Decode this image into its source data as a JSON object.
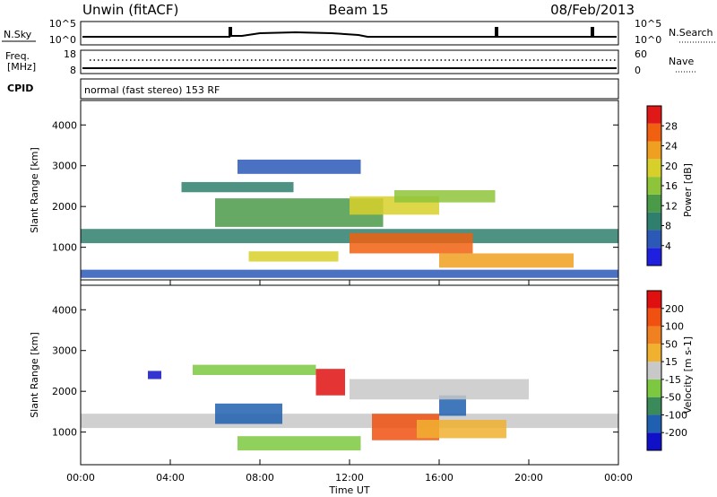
{
  "header": {
    "station": "Unwin (fitACF)",
    "beam": "Beam 15",
    "date": "08/Feb/2013"
  },
  "noise_panel": {
    "left_label": "N.Sky",
    "right_label": "N.Search",
    "left_ticks": [
      "10^5",
      "10^0"
    ],
    "right_ticks": [
      "10^5",
      "10^0"
    ]
  },
  "freq_panel": {
    "left_label_line1": "Freq.",
    "left_label_line2": "[MHz]",
    "right_label": "Nave",
    "left_ticks": [
      "18",
      "8"
    ],
    "right_ticks": [
      "60",
      "0"
    ]
  },
  "cpid_panel": {
    "label": "CPID",
    "mode": "normal (fast stereo) 153 RF"
  },
  "x_axis": {
    "label": "Time UT",
    "ticks": [
      "00:00",
      "04:00",
      "08:00",
      "12:00",
      "16:00",
      "20:00",
      "00:00"
    ],
    "range_hours": [
      0,
      24
    ]
  },
  "chart_data": [
    {
      "type": "heatmap",
      "parameter": "Power",
      "ylabel": "Slant Range [km]",
      "ylim": [
        200,
        4600
      ],
      "yticks": [
        "1000",
        "2000",
        "3000",
        "4000"
      ],
      "colorbar_label": "Power [dB]",
      "colorbar_ticks": [
        "4",
        "8",
        "12",
        "16",
        "20",
        "24",
        "28"
      ],
      "colorbar_range": [
        0,
        32
      ],
      "colors": [
        "#1f1fe0",
        "#2c58b8",
        "#2f7f6e",
        "#4a9a4a",
        "#8ec43a",
        "#d8d02a",
        "#f0a020",
        "#f06010",
        "#e01818"
      ],
      "regions": [
        {
          "t0": 0.0,
          "t1": 24.0,
          "r0": 1100,
          "r1": 1450,
          "level": 10
        },
        {
          "t0": 4.5,
          "t1": 9.5,
          "r0": 2350,
          "r1": 2600,
          "level": 8
        },
        {
          "t0": 6.0,
          "t1": 13.5,
          "r0": 1500,
          "r1": 2200,
          "level": 14
        },
        {
          "t0": 7.5,
          "t1": 11.5,
          "r0": 650,
          "r1": 900,
          "level": 18
        },
        {
          "t0": 12.0,
          "t1": 16.0,
          "r0": 1800,
          "r1": 2250,
          "level": 20
        },
        {
          "t0": 12.0,
          "t1": 17.5,
          "r0": 850,
          "r1": 1350,
          "level": 26
        },
        {
          "t0": 16.0,
          "t1": 22.0,
          "r0": 500,
          "r1": 850,
          "level": 22
        },
        {
          "t0": 14.0,
          "t1": 18.5,
          "r0": 2100,
          "r1": 2400,
          "level": 16
        },
        {
          "t0": 7.0,
          "t1": 12.5,
          "r0": 2800,
          "r1": 3150,
          "level": 6
        },
        {
          "t0": 0.0,
          "t1": 24.0,
          "r0": 250,
          "r1": 450,
          "level": 6
        }
      ]
    },
    {
      "type": "heatmap",
      "parameter": "Velocity",
      "ylabel": "Slant Range [km]",
      "ylim": [
        200,
        4600
      ],
      "yticks": [
        "1000",
        "2000",
        "3000",
        "4000"
      ],
      "colorbar_label": "Velocity [m s-1]",
      "colorbar_ticks": [
        "200",
        "100",
        "50",
        "15",
        "-15",
        "-50",
        "-100",
        "-200"
      ],
      "colorbar_range": [
        -250,
        250
      ],
      "colors": [
        "#1010c8",
        "#2060b0",
        "#3a8a5a",
        "#7cc840",
        "#c8c8c8",
        "#f0b030",
        "#f08020",
        "#f05010",
        "#e01010"
      ],
      "regions": [
        {
          "t0": 0.0,
          "t1": 24.0,
          "r0": 1100,
          "r1": 1450,
          "value": 0
        },
        {
          "t0": 3.0,
          "t1": 3.6,
          "r0": 2300,
          "r1": 2500,
          "value": -200
        },
        {
          "t0": 5.0,
          "t1": 10.5,
          "r0": 2400,
          "r1": 2650,
          "value": -50
        },
        {
          "t0": 7.0,
          "t1": 12.5,
          "r0": 550,
          "r1": 900,
          "value": -50
        },
        {
          "t0": 10.5,
          "t1": 11.8,
          "r0": 1900,
          "r1": 2550,
          "value": 200
        },
        {
          "t0": 13.0,
          "t1": 16.0,
          "r0": 800,
          "r1": 1450,
          "value": 150
        },
        {
          "t0": 15.0,
          "t1": 19.0,
          "r0": 850,
          "r1": 1300,
          "value": 40
        },
        {
          "t0": 16.0,
          "t1": 17.2,
          "r0": 1400,
          "r1": 1900,
          "value": -150
        },
        {
          "t0": 12.0,
          "t1": 20.0,
          "r0": 1800,
          "r1": 2300,
          "value": 0
        },
        {
          "t0": 6.0,
          "t1": 9.0,
          "r0": 1200,
          "r1": 1700,
          "value": -150
        }
      ]
    }
  ]
}
